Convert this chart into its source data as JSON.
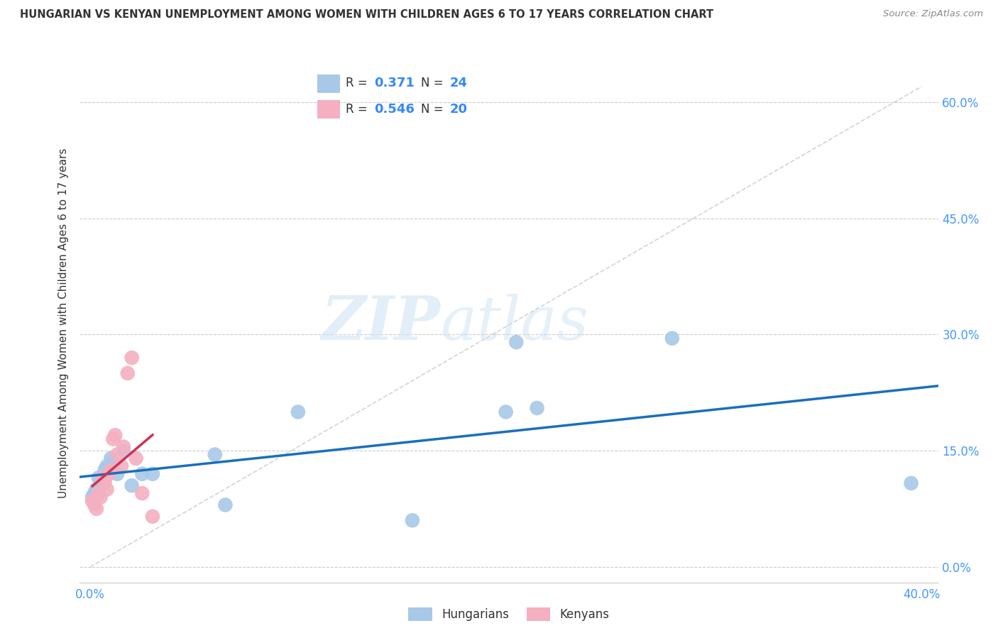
{
  "title": "HUNGARIAN VS KENYAN UNEMPLOYMENT AMONG WOMEN WITH CHILDREN AGES 6 TO 17 YEARS CORRELATION CHART",
  "source": "Source: ZipAtlas.com",
  "ylabel": "Unemployment Among Women with Children Ages 6 to 17 years",
  "xlim": [
    -0.005,
    0.408
  ],
  "ylim": [
    -0.02,
    0.65
  ],
  "xticks": [
    0.0,
    0.05,
    0.1,
    0.15,
    0.2,
    0.25,
    0.3,
    0.35,
    0.4
  ],
  "yticks": [
    0.0,
    0.15,
    0.3,
    0.45,
    0.6
  ],
  "ytick_labels_right": [
    "0.0%",
    "15.0%",
    "30.0%",
    "45.0%",
    "60.0%"
  ],
  "xtick_labels": [
    "0.0%",
    "",
    "",
    "",
    "",
    "",
    "",
    "",
    "40.0%"
  ],
  "hungarian_R": "0.371",
  "hungarian_N": "24",
  "kenyan_R": "0.546",
  "kenyan_N": "20",
  "hungarian_color": "#a8c8e8",
  "hungarian_line_color": "#1a6fbd",
  "kenyan_color": "#f4b0c0",
  "kenyan_line_color": "#cc3355",
  "diagonal_color": "#cccccc",
  "watermark_zip": "ZIP",
  "watermark_atlas": "atlas",
  "hungarian_x": [
    0.001,
    0.002,
    0.003,
    0.004,
    0.005,
    0.006,
    0.007,
    0.008,
    0.01,
    0.011,
    0.013,
    0.016,
    0.02,
    0.025,
    0.03,
    0.06,
    0.065,
    0.1,
    0.155,
    0.2,
    0.205,
    0.215,
    0.28,
    0.395
  ],
  "hungarian_y": [
    0.09,
    0.095,
    0.1,
    0.115,
    0.105,
    0.11,
    0.125,
    0.13,
    0.14,
    0.135,
    0.12,
    0.15,
    0.105,
    0.12,
    0.12,
    0.145,
    0.08,
    0.2,
    0.06,
    0.2,
    0.29,
    0.205,
    0.295,
    0.108
  ],
  "kenyan_x": [
    0.001,
    0.002,
    0.003,
    0.004,
    0.005,
    0.006,
    0.007,
    0.008,
    0.009,
    0.01,
    0.011,
    0.012,
    0.013,
    0.015,
    0.016,
    0.018,
    0.02,
    0.022,
    0.025,
    0.03
  ],
  "kenyan_y": [
    0.085,
    0.08,
    0.075,
    0.095,
    0.09,
    0.115,
    0.11,
    0.1,
    0.12,
    0.125,
    0.165,
    0.17,
    0.145,
    0.13,
    0.155,
    0.25,
    0.27,
    0.14,
    0.095,
    0.065
  ]
}
